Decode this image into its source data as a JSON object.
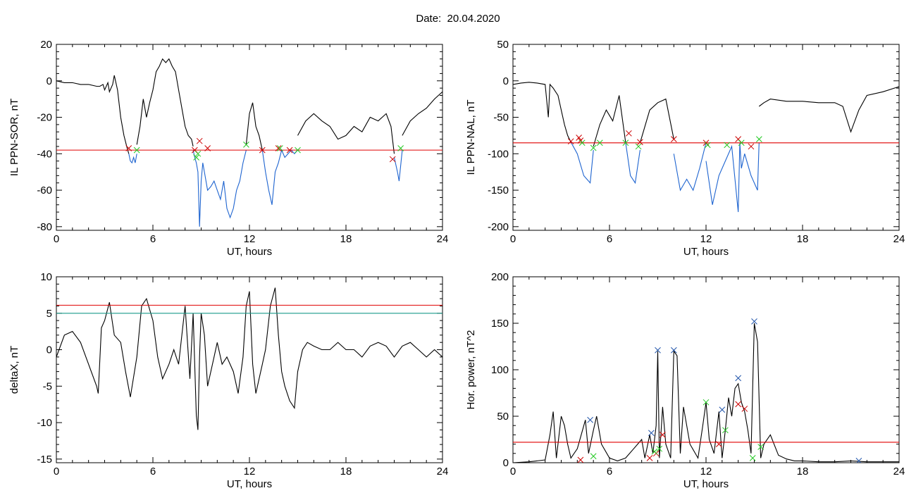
{
  "title": "Date:  20.04.2020",
  "chart_data": [
    {
      "type": "line",
      "ylabel": "IL PPN-SOR, nT",
      "xlabel": "UT, hours",
      "xlim": [
        0,
        24
      ],
      "ylim": [
        -82,
        20
      ],
      "xticks": [
        0,
        6,
        12,
        18,
        24
      ],
      "yticks": [
        20,
        0,
        -20,
        -40,
        -60,
        -80
      ],
      "hlines": [
        {
          "y": -38,
          "color": "#e00000"
        }
      ],
      "series": [
        {
          "color": "#000000",
          "x": [
            0,
            0.5,
            1,
            1.5,
            2,
            2.5,
            2.7,
            2.9,
            3.0,
            3.2,
            3.3,
            3.5,
            3.6,
            3.8,
            4.0,
            4.2,
            4.4,
            4.5
          ],
          "y": [
            0,
            -1,
            -1,
            -2,
            -2,
            -3,
            -3,
            -2,
            -5,
            -1,
            -6,
            -2,
            3,
            -5,
            -20,
            -30,
            -37,
            -40
          ]
        },
        {
          "color": "#1e64d0",
          "x": [
            4.5,
            4.6,
            4.7,
            4.8,
            4.9,
            5.0
          ],
          "y": [
            -40,
            -44,
            -45,
            -42,
            -45,
            -40
          ]
        },
        {
          "color": "#000000",
          "x": [
            5.0,
            5.2,
            5.4,
            5.6,
            5.8,
            6.0,
            6.2,
            6.4,
            6.6,
            6.8,
            7.0,
            7.2,
            7.4,
            7.6,
            7.8,
            8.0,
            8.2,
            8.4,
            8.5
          ],
          "y": [
            -35,
            -25,
            -10,
            -20,
            -12,
            -5,
            5,
            8,
            12,
            10,
            12,
            8,
            5,
            -5,
            -15,
            -25,
            -30,
            -32,
            -36
          ]
        },
        {
          "color": "#1e64d0",
          "x": [
            8.5,
            8.6,
            8.7,
            8.8,
            8.9,
            9.0,
            9.1,
            9.2,
            9.4,
            9.6,
            9.8,
            10.0,
            10.2,
            10.4,
            10.6,
            10.8,
            11.0,
            11.2,
            11.4,
            11.6,
            11.8
          ],
          "y": [
            -38,
            -42,
            -45,
            -50,
            -80,
            -55,
            -45,
            -50,
            -60,
            -58,
            -55,
            -60,
            -65,
            -55,
            -70,
            -75,
            -70,
            -60,
            -55,
            -45,
            -38
          ]
        },
        {
          "color": "#000000",
          "x": [
            11.8,
            12.0,
            12.2,
            12.4,
            12.6,
            12.8
          ],
          "y": [
            -35,
            -18,
            -12,
            -25,
            -30,
            -38
          ]
        },
        {
          "color": "#1e64d0",
          "x": [
            12.8,
            13.0,
            13.2,
            13.4,
            13.6,
            13.8,
            14.0,
            14.2,
            14.4,
            14.6,
            14.8,
            15.0
          ],
          "y": [
            -38,
            -50,
            -60,
            -68,
            -50,
            -45,
            -38,
            -42,
            -40,
            -38,
            -40,
            -38
          ]
        },
        {
          "color": "#000000",
          "x": [
            15.0,
            15.5,
            16.0,
            16.5,
            17.0,
            17.5,
            18.0,
            18.5,
            19.0,
            19.5,
            20.0,
            20.5,
            20.8,
            21.0
          ],
          "y": [
            -30,
            -22,
            -18,
            -22,
            -25,
            -32,
            -30,
            -25,
            -28,
            -20,
            -22,
            -18,
            -25,
            -40
          ]
        },
        {
          "color": "#1e64d0",
          "x": [
            21.0,
            21.2,
            21.3,
            21.5
          ],
          "y": [
            -42,
            -50,
            -55,
            -38
          ]
        },
        {
          "color": "#000000",
          "x": [
            21.5,
            22.0,
            22.5,
            23.0,
            23.5,
            24.0
          ],
          "y": [
            -30,
            -22,
            -18,
            -15,
            -10,
            -6
          ]
        }
      ],
      "markers": [
        {
          "color": "#cc0000",
          "x": [
            4.5,
            8.6,
            8.9,
            9.4,
            12.8,
            13.8,
            14.5,
            20.9
          ],
          "y": [
            -37,
            -38,
            -33,
            -37,
            -38,
            -37,
            -38,
            -43
          ]
        },
        {
          "color": "#22c922",
          "x": [
            5.0,
            8.7,
            8.8,
            11.8,
            13.9,
            15.0,
            21.4
          ],
          "y": [
            -38,
            -42,
            -40,
            -35,
            -37,
            -38,
            -37
          ]
        }
      ]
    },
    {
      "type": "line",
      "ylabel": "IL PPN-NAL, nT",
      "xlabel": "UT, hours",
      "xlim": [
        0,
        24
      ],
      "ylim": [
        -205,
        50
      ],
      "xticks": [
        0,
        6,
        12,
        18,
        24
      ],
      "yticks": [
        50,
        0,
        -50,
        -100,
        -150,
        -200
      ],
      "hlines": [
        {
          "y": -85,
          "color": "#e00000"
        }
      ],
      "series": [
        {
          "color": "#000000",
          "x": [
            0,
            0.5,
            1,
            1.5,
            2,
            2.2,
            2.3,
            2.5,
            2.8,
            3.0,
            3.2,
            3.4,
            3.6
          ],
          "y": [
            -5,
            -3,
            -2,
            -3,
            -5,
            -50,
            -5,
            -10,
            -20,
            -40,
            -60,
            -75,
            -84
          ]
        },
        {
          "color": "#1e64d0",
          "x": [
            3.6,
            4.0,
            4.4,
            4.8,
            5.0
          ],
          "y": [
            -84,
            -100,
            -130,
            -140,
            -95
          ]
        },
        {
          "color": "#000000",
          "x": [
            5.0,
            5.4,
            5.8,
            6.2,
            6.6,
            7.0
          ],
          "y": [
            -90,
            -60,
            -40,
            -55,
            -20,
            -84
          ]
        },
        {
          "color": "#1e64d0",
          "x": [
            7.0,
            7.3,
            7.6,
            7.9
          ],
          "y": [
            -84,
            -130,
            -140,
            -95
          ]
        },
        {
          "color": "#000000",
          "x": [
            7.9,
            8.5,
            9.0,
            9.5,
            10.0
          ],
          "y": [
            -85,
            -40,
            -30,
            -25,
            -80
          ]
        },
        {
          "color": "#1e64d0",
          "x": [
            10.0,
            10.4,
            10.8,
            11.2,
            11.6,
            12.0
          ],
          "y": [
            -100,
            -150,
            -135,
            -150,
            -120,
            -85
          ]
        },
        {
          "color": "#1e64d0",
          "x": [
            12.0,
            12.4,
            12.8,
            13.2,
            13.6,
            14.0,
            14.1,
            14.2,
            14.4,
            14.8,
            15.2,
            15.3
          ],
          "y": [
            -110,
            -170,
            -130,
            -110,
            -90,
            -180,
            -85,
            -120,
            -100,
            -130,
            -150,
            -85
          ]
        },
        {
          "color": "#000000",
          "x": [
            15.3,
            15.6,
            16,
            17,
            18,
            19,
            20,
            20.5,
            21,
            21.5,
            22,
            23,
            24
          ],
          "y": [
            -35,
            -30,
            -25,
            -28,
            -28,
            -30,
            -30,
            -35,
            -70,
            -40,
            -20,
            -15,
            -8
          ]
        }
      ],
      "markers": [
        {
          "color": "#cc0000",
          "x": [
            3.6,
            4.1,
            4.2,
            7.2,
            7.9,
            10.0,
            12.0,
            14.0,
            14.8
          ],
          "y": [
            -83,
            -78,
            -82,
            -72,
            -84,
            -80,
            -85,
            -80,
            -90
          ]
        },
        {
          "color": "#22c922",
          "x": [
            4.3,
            5.0,
            5.4,
            7.0,
            7.8,
            12.1,
            13.3,
            14.2,
            15.3
          ],
          "y": [
            -85,
            -92,
            -85,
            -85,
            -90,
            -88,
            -88,
            -85,
            -80
          ]
        }
      ]
    },
    {
      "type": "line",
      "ylabel": "deltaX, nT",
      "xlabel": "UT, hours",
      "xlim": [
        0,
        24
      ],
      "ylim": [
        -15.5,
        10
      ],
      "xticks": [
        0,
        6,
        12,
        18,
        24
      ],
      "yticks": [
        10,
        5,
        0,
        -5,
        -10,
        -15
      ],
      "hlines": [
        {
          "y": 6.1,
          "color": "#e00000"
        },
        {
          "y": 5.0,
          "color": "#1a9a8a"
        }
      ],
      "series": [
        {
          "color": "#000000",
          "x": [
            0,
            0.5,
            1,
            1.5,
            2,
            2.5,
            2.6,
            2.8,
            3.0,
            3.3,
            3.6,
            4.0,
            4.3,
            4.6,
            5.0,
            5.3,
            5.6,
            6.0,
            6.3,
            6.6,
            7.0,
            7.3,
            7.6,
            8.0,
            8.3,
            8.5,
            8.7,
            8.8,
            8.9,
            9.0,
            9.2,
            9.4,
            9.6,
            9.8,
            10.0,
            10.3,
            10.6,
            11.0,
            11.3,
            11.6,
            11.8,
            12.0,
            12.2,
            12.4,
            12.6,
            12.8,
            13.0,
            13.3,
            13.6,
            13.8,
            14.0,
            14.2,
            14.5,
            14.8,
            15.0,
            15.3,
            15.6,
            16.0,
            16.5,
            17.0,
            17.5,
            18.0,
            18.5,
            19.0,
            19.5,
            20.0,
            20.5,
            21.0,
            21.5,
            22.0,
            22.5,
            23.0,
            23.5,
            24.0
          ],
          "y": [
            -1,
            2,
            2.5,
            1,
            -2,
            -5,
            -6,
            3,
            4,
            6.5,
            2,
            1,
            -3,
            -6.5,
            -1,
            6,
            7,
            4,
            -1,
            -4,
            -2,
            0,
            -2,
            6,
            -4,
            5,
            -9,
            -11,
            -1,
            5,
            2,
            -5,
            -3,
            -1,
            1,
            -2,
            -1,
            -3,
            -6,
            -1,
            6,
            8,
            -2,
            -6,
            -4,
            -2,
            0,
            6,
            8.5,
            2,
            -3,
            -5,
            -7,
            -8,
            -3,
            0,
            1,
            0.5,
            0,
            0,
            1,
            0,
            0,
            -1,
            0.5,
            1,
            0.5,
            -1,
            0.5,
            1,
            0,
            -1,
            0,
            -1
          ]
        }
      ],
      "markers": []
    },
    {
      "type": "line",
      "ylabel": "Hor. power, nT^2",
      "xlabel": "UT, hours",
      "xlim": [
        0,
        24
      ],
      "ylim": [
        0,
        200
      ],
      "xticks": [
        0,
        6,
        12,
        18,
        24
      ],
      "yticks": [
        200,
        150,
        100,
        50,
        0
      ],
      "hlines": [
        {
          "y": 22,
          "color": "#e00000"
        }
      ],
      "series": [
        {
          "color": "#000000",
          "x": [
            0,
            1,
            2,
            2.3,
            2.5,
            2.7,
            3.0,
            3.2,
            3.4,
            3.6,
            4.0,
            4.5,
            4.7,
            5.0,
            5.2,
            5.5,
            6.0,
            6.5,
            7.0,
            7.5,
            8.0,
            8.2,
            8.5,
            8.7,
            8.9,
            9.0,
            9.1,
            9.3,
            9.5,
            9.8,
            10.0,
            10.2,
            10.4,
            10.6,
            11.0,
            11.5,
            11.8,
            12.0,
            12.2,
            12.5,
            12.8,
            13.0,
            13.2,
            13.4,
            13.6,
            13.8,
            14.0,
            14.2,
            14.4,
            14.6,
            14.8,
            15.0,
            15.2,
            15.4,
            15.6,
            16.0,
            16.5,
            17.0,
            17.5,
            18,
            19,
            20,
            21,
            22,
            23,
            24
          ],
          "y": [
            0,
            1,
            3,
            30,
            55,
            5,
            50,
            40,
            20,
            5,
            15,
            46,
            10,
            35,
            50,
            20,
            5,
            2,
            5,
            15,
            25,
            5,
            30,
            10,
            40,
            120,
            5,
            60,
            20,
            5,
            120,
            115,
            10,
            60,
            20,
            5,
            40,
            65,
            25,
            10,
            55,
            5,
            35,
            70,
            50,
            80,
            85,
            65,
            55,
            35,
            10,
            150,
            130,
            5,
            20,
            30,
            8,
            4,
            2,
            2,
            1,
            1,
            2,
            1,
            1,
            1
          ]
        }
      ],
      "markers": [
        {
          "color": "#cc0000",
          "x": [
            4.2,
            8.5,
            8.9,
            9.3,
            12.8,
            14.0,
            14.4
          ],
          "y": [
            3,
            5,
            10,
            30,
            20,
            63,
            58
          ]
        },
        {
          "color": "#22c922",
          "x": [
            5.0,
            8.8,
            9.1,
            12.0,
            13.2,
            14.9,
            15.4
          ],
          "y": [
            7,
            12,
            15,
            65,
            35,
            5,
            17
          ]
        },
        {
          "color": "#2255aa",
          "x": [
            4.8,
            8.6,
            9.0,
            10.0,
            13.0,
            14.0,
            15.0,
            21.5
          ],
          "y": [
            46,
            32,
            121,
            121,
            57,
            91,
            152,
            2
          ]
        }
      ]
    }
  ]
}
